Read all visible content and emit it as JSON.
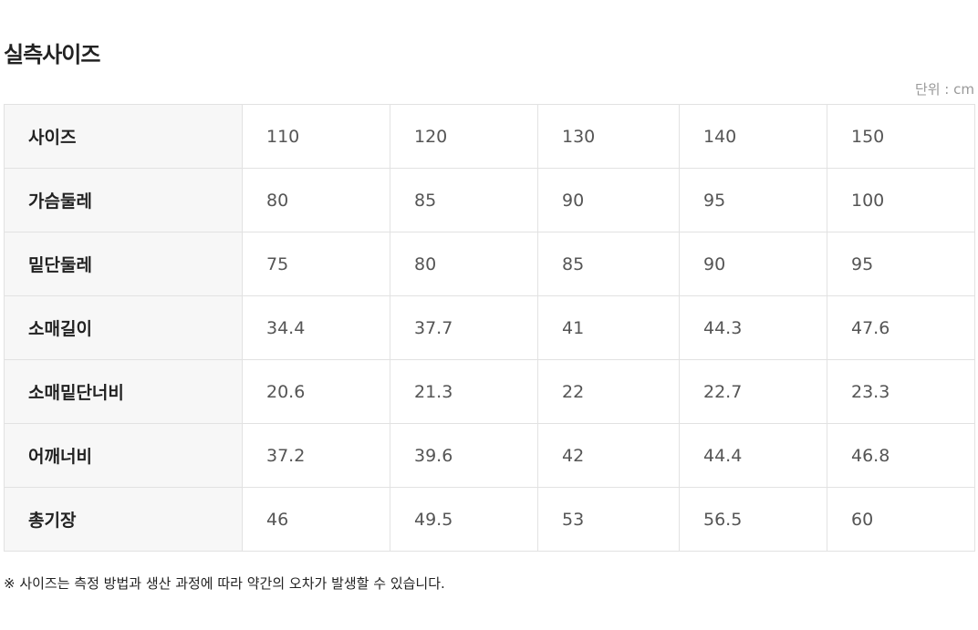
{
  "title": "실측사이즈",
  "unit": "단위 : cm",
  "rows": [
    {
      "label": "사이즈",
      "values": [
        "110",
        "120",
        "130",
        "140",
        "150"
      ]
    },
    {
      "label": "가슴둘레",
      "values": [
        "80",
        "85",
        "90",
        "95",
        "100"
      ]
    },
    {
      "label": "밑단둘레",
      "values": [
        "75",
        "80",
        "85",
        "90",
        "95"
      ]
    },
    {
      "label": "소매길이",
      "values": [
        "34.4",
        "37.7",
        "41",
        "44.3",
        "47.6"
      ]
    },
    {
      "label": "소매밑단너비",
      "values": [
        "20.6",
        "21.3",
        "22",
        "22.7",
        "23.3"
      ]
    },
    {
      "label": "어깨너비",
      "values": [
        "37.2",
        "39.6",
        "42",
        "44.4",
        "46.8"
      ]
    },
    {
      "label": "총기장",
      "values": [
        "46",
        "49.5",
        "53",
        "56.5",
        "60"
      ]
    }
  ],
  "note": "※ 사이즈는 측정 방법과 생산 과정에 따라 약간의 오차가 발생할 수 있습니다."
}
